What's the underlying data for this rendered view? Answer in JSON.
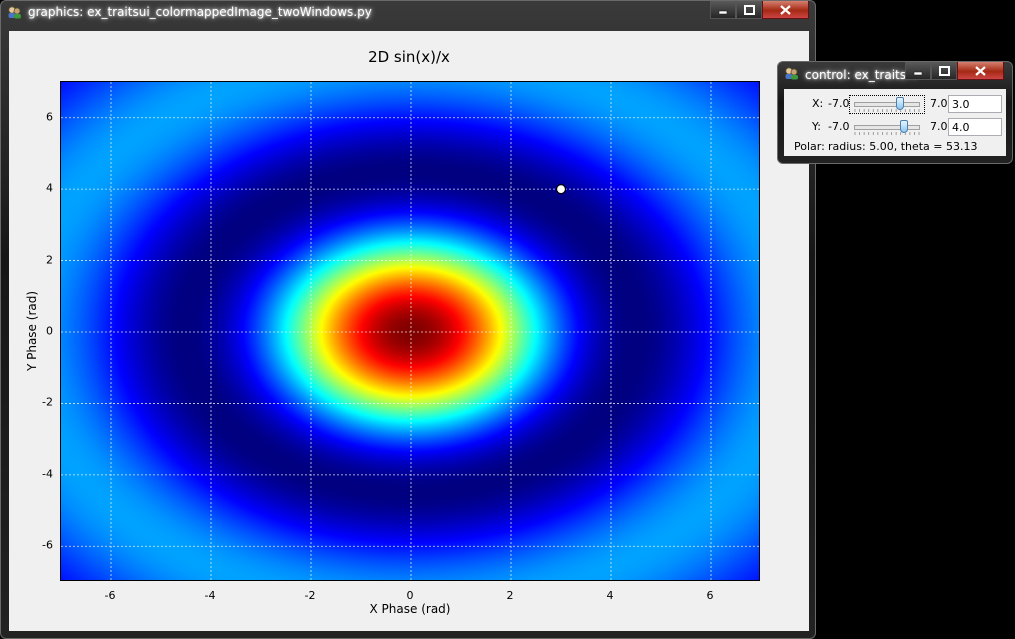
{
  "graphics_window": {
    "title": "graphics: ex_traitsui_colormappedImage_twoWindows.py"
  },
  "control_window": {
    "title": "control: ex_traits...",
    "x_label": "X:",
    "x_min": "-7.0",
    "x_max": "7.0",
    "x_value": "3.0",
    "x_slider_fraction": 0.714,
    "y_label": "Y:",
    "y_min": "-7.0",
    "y_max": "7.0",
    "y_value": "4.0",
    "y_slider_fraction": 0.786,
    "polar_label": "Polar:",
    "polar_text": "radius: 5.00, theta = 53.13"
  },
  "icons": [
    "app-icon",
    "minimize-icon",
    "maximize-icon",
    "close-icon"
  ],
  "chart_data": {
    "type": "heatmap",
    "title": "2D sin(x)/x",
    "xlabel": "X Phase (rad)",
    "ylabel": "Y Phase (rad)",
    "xlim": [
      -7,
      7
    ],
    "ylim": [
      -7,
      7
    ],
    "x_ticks": [
      "-6",
      "-4",
      "-2",
      "0",
      "2",
      "4",
      "6"
    ],
    "y_ticks": [
      "6",
      "4",
      "2",
      "0",
      "-2",
      "-4",
      "-6"
    ],
    "function": "sin(r)/r where r = sqrt(x^2 + y^2)",
    "colormap": "jet",
    "grid": true,
    "marker": {
      "x": 3.0,
      "y": 4.0
    }
  }
}
